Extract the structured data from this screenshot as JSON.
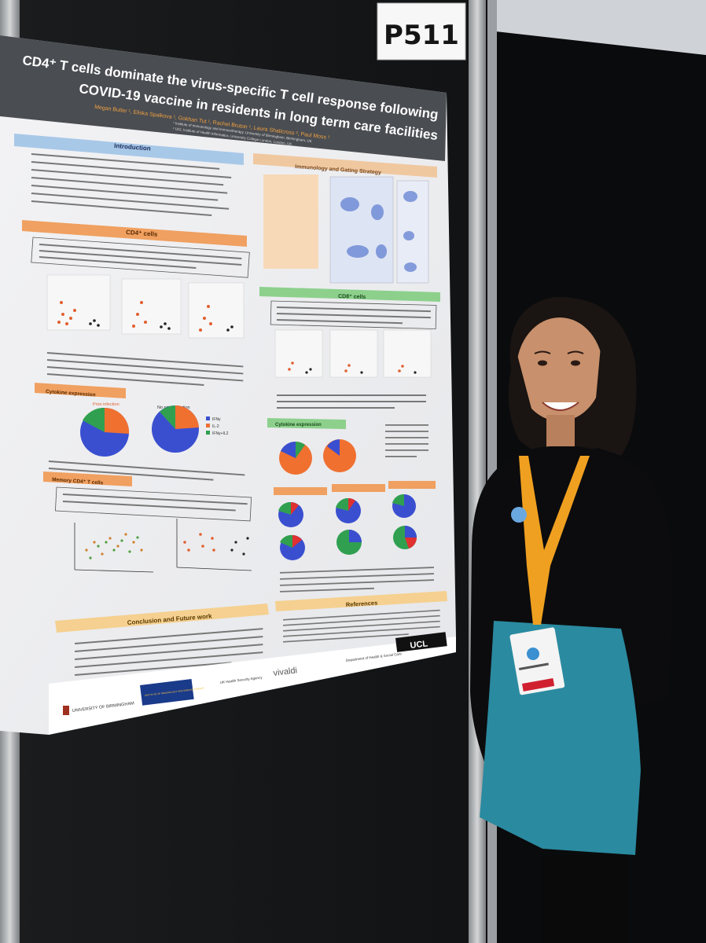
{
  "booth": {
    "label": "P511"
  },
  "poster": {
    "title_line1": "CD4⁺ T cells dominate the virus-specific T cell response following",
    "title_line2": "COVID-19 vaccine in residents in long term care facilities",
    "authors": "Megan Butler ¹, Eliska Spalkova ¹, Gokhan Tut ¹, Rachel Bruton ¹, Laura Shalicross ², Paul Moss ¹",
    "affil_1": "¹ Institute of Immunology and Immunotherapy, University of Birmingham, Birmingham, UK",
    "affil_2": "² UCL Institute of Health Informatics, University College London, London, UK",
    "sections": {
      "introduction": "Introduction",
      "immunology": "Immunology and Gating Strategy",
      "cd4": "CD4⁺ cells",
      "cd8": "CD8⁺ cells",
      "cytokine_left": "Cytokine expression",
      "cytokine_right": "Cytokine expression",
      "memory": "Memory CD4⁺ T cells",
      "conclusion": "Conclusion and Future work",
      "references": "References"
    },
    "cd4_finding": "Prior infection resulted in a higher number of double IL-2 and IFNγ-expressing cells. The percentage of spike-specific CD4⁺ T cells was 0.0395% within infection-primed donors compared to 0.0175% within the infection-naive group.",
    "cd8_finding": "Responses to SARS-CoV-2 peptides were low in CD8⁺ T cells compared to CD4⁺ T cells. The percentage of spike-specific CD8⁺ T cells was 0.0160% within infection-primed donors compared to 0.0072% within the infection-naive group.",
    "memory_finding": "The CD4⁺ central memory T cells increased with age. Infection-naive donors had less CD4⁺ central memory T cells compared to donors with history of infection.",
    "pie_labels": {
      "prior": "Prior infection",
      "no_prior": "No prior infection"
    },
    "legend": [
      "IFNγ",
      "IL-2",
      "IFNγ+IL2"
    ],
    "logos": [
      "UNIVERSITY OF BIRMINGHAM",
      "INSTITUTE OF IMMUNOLOGY AND IMMUNOTHERAPY",
      "UK Health Security Agency",
      "vivaldi",
      "Department of Health & Social Care",
      "UCL"
    ]
  },
  "colors": {
    "poster_header": "#4a4d52",
    "section_orange": "#f0a060",
    "section_green": "#8cd08c",
    "pie_blue": "#3a4fd0",
    "pie_orange": "#f07030",
    "pie_green": "#30a050",
    "lanyard": "#f0a020",
    "skirt": "#2a8aa0"
  }
}
